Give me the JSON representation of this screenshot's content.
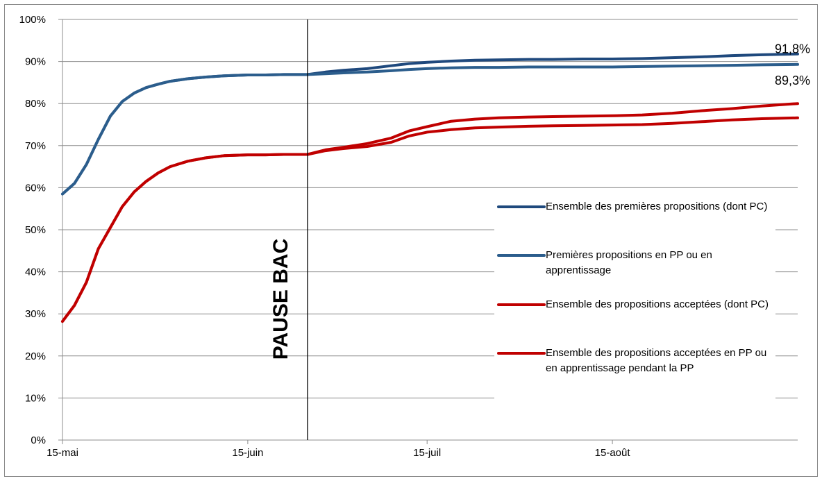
{
  "chart_data": {
    "type": "line",
    "title": "",
    "xlabel": "",
    "ylabel": "",
    "x_tick_labels": [
      "15-mai",
      "15-juin",
      "15-juil",
      "15-août"
    ],
    "x_tick_dates": [
      "05-15",
      "06-15",
      "07-15",
      "08-15"
    ],
    "x_range": [
      "05-15",
      "09-15"
    ],
    "y_tick_labels": [
      "0%",
      "10%",
      "20%",
      "30%",
      "40%",
      "50%",
      "60%",
      "70%",
      "80%",
      "90%",
      "100%"
    ],
    "ylim": [
      0,
      100
    ],
    "grid": true,
    "legend_position": "right",
    "annotation": {
      "text": "PAUSE BAC",
      "date": "06-25"
    },
    "end_labels": [
      "91,8%",
      "89,3%"
    ],
    "series": [
      {
        "name": "Ensemble des premières propositions (dont PC)",
        "color": "#1f497d",
        "dates": [
          "05-15",
          "05-17",
          "05-19",
          "05-21",
          "05-23",
          "05-25",
          "05-27",
          "05-29",
          "05-31",
          "06-02",
          "06-05",
          "06-08",
          "06-11",
          "06-15",
          "06-18",
          "06-21",
          "06-25",
          "06-28",
          "07-01",
          "07-05",
          "07-09",
          "07-12",
          "07-15",
          "07-19",
          "07-23",
          "07-27",
          "08-01",
          "08-05",
          "08-10",
          "08-15",
          "08-20",
          "08-25",
          "08-30",
          "09-04",
          "09-09",
          "09-15"
        ],
        "values": [
          58.5,
          61,
          65.5,
          71.5,
          77,
          80.5,
          82.5,
          83.8,
          84.6,
          85.3,
          85.9,
          86.3,
          86.6,
          86.8,
          86.8,
          86.9,
          86.9,
          87.5,
          87.9,
          88.3,
          89,
          89.5,
          89.8,
          90.1,
          90.3,
          90.4,
          90.5,
          90.5,
          90.6,
          90.6,
          90.7,
          90.9,
          91.1,
          91.4,
          91.6,
          91.8
        ]
      },
      {
        "name": "Premières propositions en PP ou en apprentissage",
        "color": "#2b5d8c",
        "dates": [
          "05-15",
          "05-17",
          "05-19",
          "05-21",
          "05-23",
          "05-25",
          "05-27",
          "05-29",
          "05-31",
          "06-02",
          "06-05",
          "06-08",
          "06-11",
          "06-15",
          "06-18",
          "06-21",
          "06-25",
          "06-28",
          "07-01",
          "07-05",
          "07-09",
          "07-12",
          "07-15",
          "07-19",
          "07-23",
          "07-27",
          "08-01",
          "08-05",
          "08-10",
          "08-15",
          "08-20",
          "08-25",
          "08-30",
          "09-04",
          "09-09",
          "09-15"
        ],
        "values": [
          58.5,
          61,
          65.5,
          71.5,
          77,
          80.5,
          82.5,
          83.8,
          84.6,
          85.3,
          85.9,
          86.3,
          86.6,
          86.8,
          86.8,
          86.9,
          86.9,
          87.1,
          87.3,
          87.5,
          87.8,
          88.1,
          88.3,
          88.5,
          88.6,
          88.6,
          88.7,
          88.7,
          88.7,
          88.7,
          88.8,
          88.9,
          89.0,
          89.1,
          89.2,
          89.3
        ]
      },
      {
        "name": "Ensemble des propositions acceptées (dont PC)",
        "color": "#c00000",
        "dates": [
          "05-15",
          "05-17",
          "05-19",
          "05-21",
          "05-23",
          "05-25",
          "05-27",
          "05-29",
          "05-31",
          "06-02",
          "06-05",
          "06-08",
          "06-11",
          "06-15",
          "06-18",
          "06-21",
          "06-25",
          "06-28",
          "07-01",
          "07-05",
          "07-09",
          "07-12",
          "07-15",
          "07-19",
          "07-23",
          "07-27",
          "08-01",
          "08-05",
          "08-10",
          "08-15",
          "08-20",
          "08-25",
          "08-30",
          "09-04",
          "09-09",
          "09-15"
        ],
        "values": [
          28.2,
          32,
          37.5,
          45.5,
          50.5,
          55.5,
          59,
          61.5,
          63.5,
          65,
          66.3,
          67.1,
          67.6,
          67.8,
          67.8,
          67.9,
          67.9,
          69,
          69.6,
          70.5,
          71.8,
          73.5,
          74.5,
          75.8,
          76.3,
          76.6,
          76.8,
          76.9,
          77.0,
          77.1,
          77.3,
          77.7,
          78.3,
          78.8,
          79.4,
          80.0
        ]
      },
      {
        "name": "Ensemble des propositions acceptées en PP ou en apprentissage pendant la PP",
        "color": "#c00000",
        "dates": [
          "05-15",
          "05-17",
          "05-19",
          "05-21",
          "05-23",
          "05-25",
          "05-27",
          "05-29",
          "05-31",
          "06-02",
          "06-05",
          "06-08",
          "06-11",
          "06-15",
          "06-18",
          "06-21",
          "06-25",
          "06-28",
          "07-01",
          "07-05",
          "07-09",
          "07-12",
          "07-15",
          "07-19",
          "07-23",
          "07-27",
          "08-01",
          "08-05",
          "08-10",
          "08-15",
          "08-20",
          "08-25",
          "08-30",
          "09-04",
          "09-09",
          "09-15"
        ],
        "values": [
          28.2,
          32,
          37.5,
          45.5,
          50.5,
          55.5,
          59,
          61.5,
          63.5,
          65,
          66.3,
          67.1,
          67.6,
          67.8,
          67.8,
          67.9,
          67.9,
          68.8,
          69.3,
          69.8,
          70.8,
          72.3,
          73.2,
          73.8,
          74.2,
          74.4,
          74.6,
          74.7,
          74.8,
          74.9,
          75.0,
          75.3,
          75.7,
          76.1,
          76.4,
          76.6
        ]
      }
    ]
  }
}
